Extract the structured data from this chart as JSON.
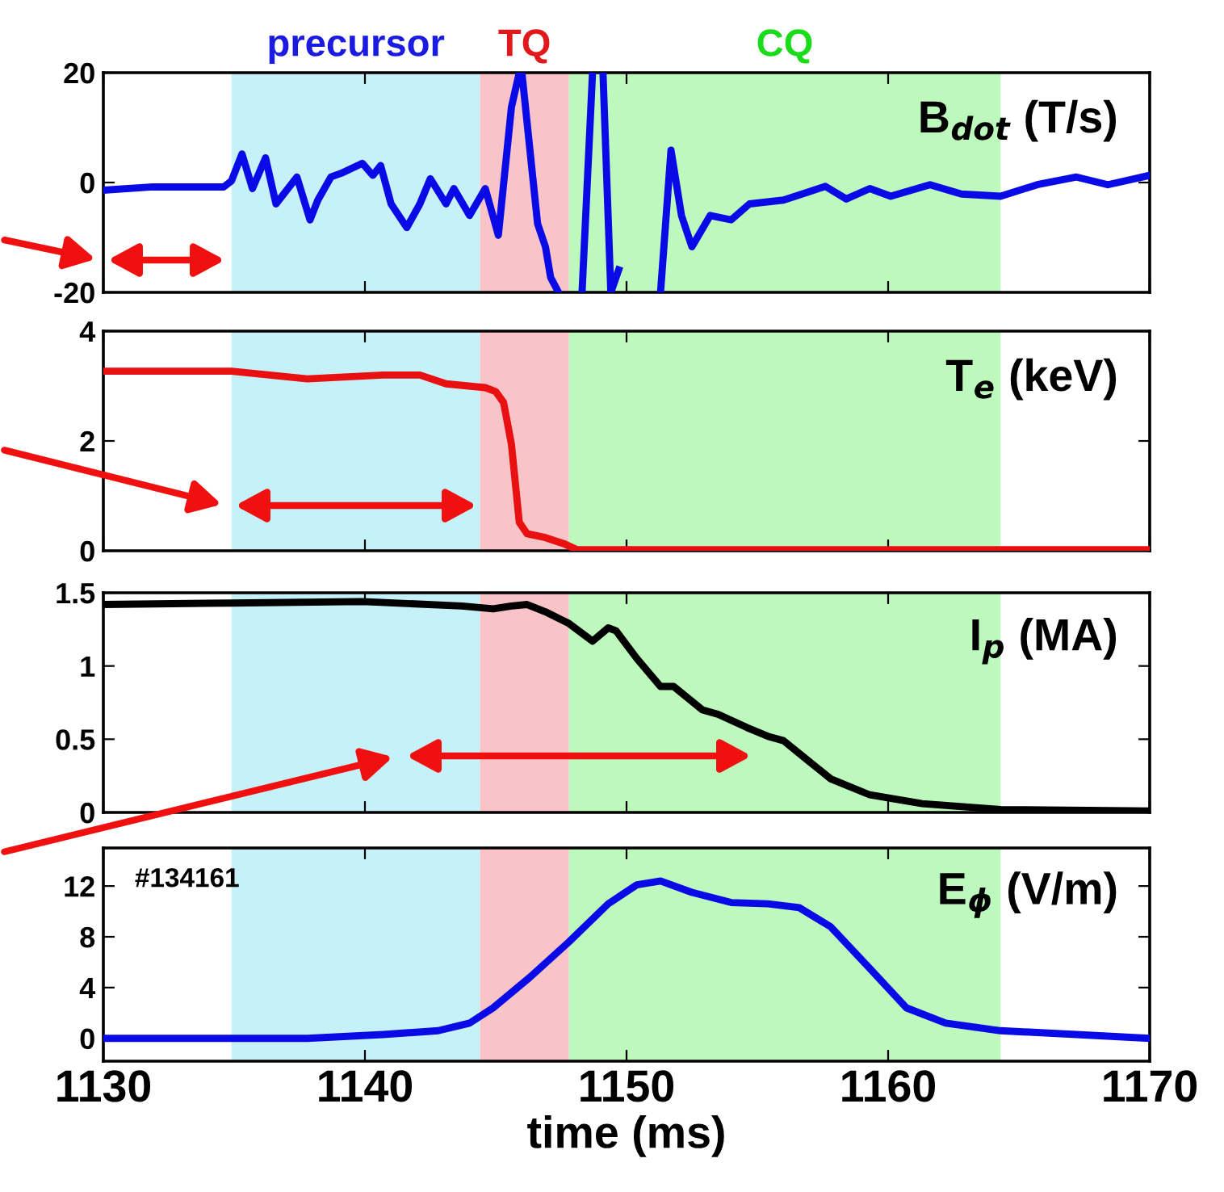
{
  "chart_data": [
    {
      "type": "line",
      "title": "B$_{dot}$ (T/s)",
      "xlim": [
        1130,
        1170
      ],
      "xticks": [
        1130,
        1140,
        1150,
        1160,
        1170
      ],
      "ylim": [
        -20,
        20
      ],
      "yticks": [
        -20,
        0,
        20
      ],
      "tick_labels": "y",
      "grid": false,
      "legend": false,
      "bands": [
        {
          "axis": "x",
          "from": 1134.9,
          "to": 1144.4,
          "label": "precursor",
          "color": "#c6f1f9"
        },
        {
          "axis": "x",
          "from": 1144.4,
          "to": 1147.8,
          "label": "TQ",
          "color": "#f9c4c8"
        },
        {
          "axis": "x",
          "from": 1147.8,
          "to": 1164.3,
          "label": "CQ",
          "color": "#bdf8bd"
        }
      ],
      "series": [
        {
          "color": "#0a0ae6",
          "x": [
            1130,
            1131.9,
            1134.6,
            1134.9,
            1135.3,
            1135.7,
            1136.2,
            1136.6,
            1137.4,
            1137.9,
            1138.2,
            1138.7,
            1139.1,
            1139.9,
            1140.3,
            1140.6,
            1141,
            1141.6,
            1142.1,
            1142.5,
            1143.1,
            1143.4,
            1144,
            1144.6,
            1145.1,
            1145.6,
            1145.9,
            1146,
            1146.6,
            1146.9,
            1147.1,
            1147.4,
            1147.9,
            1148.3,
            1148.7,
            1148.9,
            1149.1,
            1149.4,
            1149.7,
            1150.5,
            1151.3,
            1151.7,
            1152.1,
            1152.5,
            1153.2,
            1154,
            1154.7,
            1156,
            1156.9,
            1157.6,
            1158.4,
            1159.3,
            1160.1,
            1161.6,
            1162.8,
            1164.3,
            1165.7,
            1167.2,
            1168.4,
            1170
          ],
          "values": [
            -1.4,
            -0.8,
            -0.8,
            0.3,
            5.2,
            -1.1,
            4.5,
            -3.9,
            1,
            -6.8,
            -3.2,
            1,
            1.7,
            3.5,
            1.3,
            3.1,
            -3.9,
            -8.2,
            -3.9,
            0.7,
            -3.9,
            -1.1,
            -6,
            -1.1,
            -9.6,
            13.7,
            20,
            20,
            -7.5,
            -11.7,
            -17.3,
            -20,
            null,
            -20,
            20,
            null,
            20,
            -20,
            -15.9,
            null,
            -20,
            5.9,
            -6,
            -11.7,
            -6,
            -6.8,
            -3.9,
            -3.2,
            -1.8,
            -0.7,
            -3,
            -1.1,
            -2.5,
            -0.4,
            -2.1,
            -2.5,
            -0.4,
            1,
            -0.4,
            1.3
          ]
        }
      ]
    },
    {
      "type": "line",
      "title": "T$_{e}$ (keV)",
      "xlim": [
        1130,
        1170
      ],
      "xticks": [
        1130,
        1140,
        1150,
        1160,
        1170
      ],
      "ylim": [
        0,
        4
      ],
      "yticks": [
        0,
        2,
        4
      ],
      "tick_labels": "y",
      "grid": false,
      "legend": false,
      "bands": [
        {
          "axis": "x",
          "from": 1134.9,
          "to": 1144.4,
          "color": "#c6f1f9"
        },
        {
          "axis": "x",
          "from": 1144.4,
          "to": 1147.8,
          "color": "#f9c4c8"
        },
        {
          "axis": "x",
          "from": 1147.8,
          "to": 1164.3,
          "color": "#bdf8bd"
        }
      ],
      "series": [
        {
          "color": "#e81010",
          "x": [
            1130,
            1134.9,
            1137.8,
            1140.7,
            1142.1,
            1143.1,
            1144.6,
            1145,
            1145.3,
            1145.6,
            1145.9,
            1146.2,
            1146.9,
            1147.6,
            1148.1,
            1170
          ],
          "values": [
            3.27,
            3.27,
            3.13,
            3.2,
            3.2,
            3.04,
            2.97,
            2.9,
            2.7,
            1.94,
            0.52,
            0.31,
            0.24,
            0.13,
            0.02,
            0.02
          ]
        }
      ]
    },
    {
      "type": "line",
      "title": "I$_{p}$ (MA)",
      "xlim": [
        1130,
        1170
      ],
      "xticks": [
        1130,
        1140,
        1150,
        1160,
        1170
      ],
      "ylim": [
        0,
        1.5
      ],
      "yticks": [
        0,
        0.5,
        1,
        1.5
      ],
      "tick_labels": "y",
      "grid": false,
      "legend": false,
      "bands": [
        {
          "axis": "x",
          "from": 1134.9,
          "to": 1144.4,
          "color": "#c6f1f9"
        },
        {
          "axis": "x",
          "from": 1144.4,
          "to": 1147.8,
          "color": "#f9c4c8"
        },
        {
          "axis": "x",
          "from": 1147.8,
          "to": 1164.3,
          "color": "#bdf8bd"
        }
      ],
      "series": [
        {
          "color": "#000000",
          "x": [
            1130,
            1134.9,
            1139.9,
            1143.7,
            1144.9,
            1145.6,
            1146.2,
            1146.9,
            1147.8,
            1148.7,
            1149.3,
            1149.6,
            1150.4,
            1151.3,
            1151.8,
            1152.9,
            1153.5,
            1154.6,
            1155.4,
            1156,
            1156.9,
            1157.8,
            1159.3,
            1161.3,
            1164.3,
            1170
          ],
          "values": [
            1.42,
            1.43,
            1.44,
            1.41,
            1.39,
            1.41,
            1.42,
            1.37,
            1.29,
            1.17,
            1.26,
            1.24,
            1.05,
            0.86,
            0.86,
            0.7,
            0.67,
            0.58,
            0.52,
            0.49,
            0.36,
            0.23,
            0.12,
            0.06,
            0.02,
            0.01
          ]
        }
      ]
    },
    {
      "type": "line",
      "title": "E$_{ϕ}$ (V/m)",
      "xlabel": "time (ms)",
      "annotations": [
        "#134161"
      ],
      "xlim": [
        1130,
        1170
      ],
      "xticks": [
        1130,
        1140,
        1150,
        1160,
        1170
      ],
      "ylim": [
        -1.8,
        15
      ],
      "yticks": [
        0,
        4,
        8,
        12
      ],
      "grid": false,
      "legend": false,
      "bands": [
        {
          "axis": "x",
          "from": 1134.9,
          "to": 1144.4,
          "color": "#c6f1f9"
        },
        {
          "axis": "x",
          "from": 1144.4,
          "to": 1147.8,
          "color": "#f9c4c8"
        },
        {
          "axis": "x",
          "from": 1147.8,
          "to": 1164.3,
          "color": "#bdf8bd"
        }
      ],
      "series": [
        {
          "color": "#0a0ae6",
          "x": [
            1130,
            1137.8,
            1140.7,
            1142.8,
            1144,
            1144.9,
            1146.3,
            1147.8,
            1149.3,
            1150.4,
            1151.3,
            1152.5,
            1154,
            1155.4,
            1156.6,
            1157.8,
            1159.3,
            1160.7,
            1162.2,
            1164.3,
            1167.2,
            1170
          ],
          "values": [
            0,
            0,
            0.3,
            0.6,
            1.2,
            2.4,
            4.8,
            7.6,
            10.6,
            12.1,
            12.4,
            11.5,
            10.7,
            10.6,
            10.3,
            8.8,
            5.5,
            2.4,
            1.2,
            0.6,
            0.3,
            0
          ]
        }
      ]
    }
  ]
}
